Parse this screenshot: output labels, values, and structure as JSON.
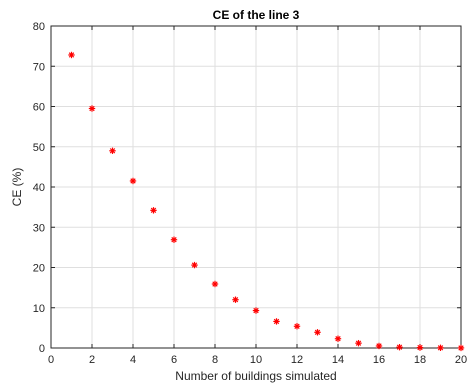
{
  "chart_data": {
    "type": "scatter",
    "title": "CE of the line 3",
    "xlabel": "Number of buildings simulated",
    "ylabel": "CE (%)",
    "xlim": [
      0,
      20
    ],
    "ylim": [
      0,
      80
    ],
    "xticks": [
      0,
      2,
      4,
      6,
      8,
      10,
      12,
      14,
      16,
      18,
      20
    ],
    "yticks": [
      0,
      10,
      20,
      30,
      40,
      50,
      60,
      70,
      80
    ],
    "grid": true,
    "marker": "asterisk",
    "color": "#ff0000",
    "x": [
      1,
      2,
      3,
      4,
      5,
      6,
      7,
      8,
      9,
      10,
      11,
      12,
      13,
      14,
      15,
      16,
      17,
      18,
      19,
      20
    ],
    "y": [
      72.8,
      59.5,
      49.0,
      41.5,
      34.2,
      26.9,
      20.6,
      15.9,
      12.0,
      9.3,
      6.6,
      5.4,
      3.9,
      2.3,
      1.2,
      0.5,
      0.2,
      0.1,
      0.05,
      0.02
    ]
  }
}
